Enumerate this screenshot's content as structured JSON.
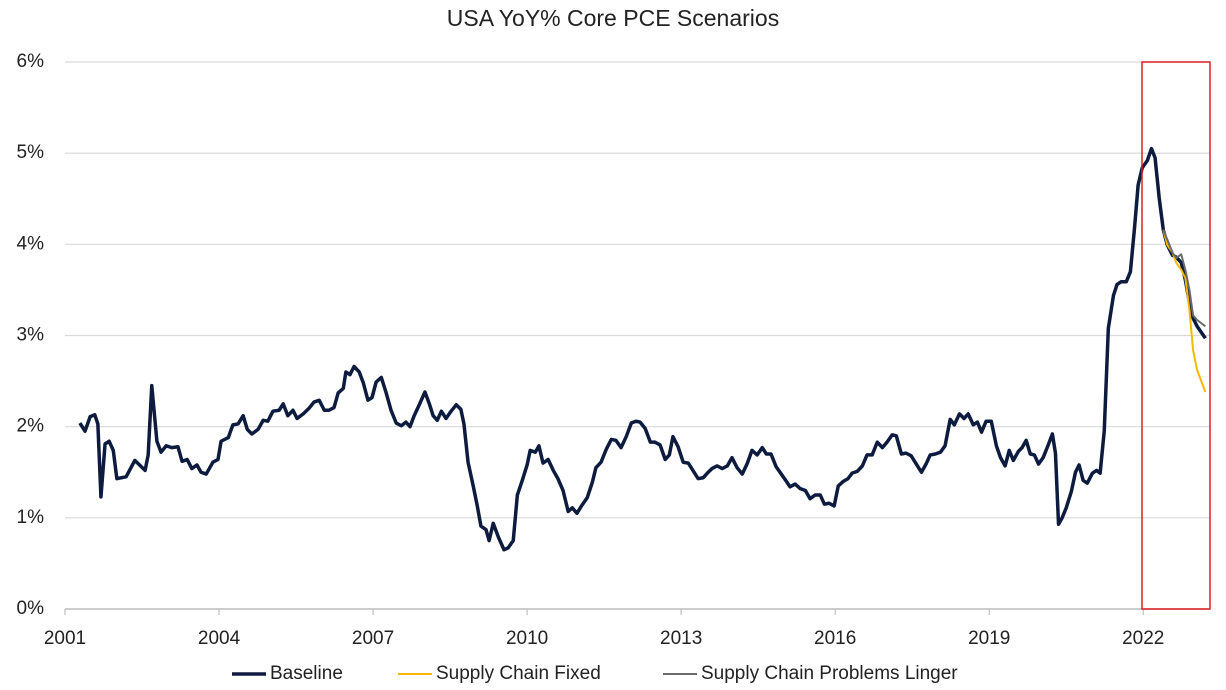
{
  "chart_data": {
    "type": "line",
    "title": "USA YoY% Core PCE Scenarios",
    "xlim": [
      2001,
      2023.3
    ],
    "xticks": [
      2001,
      2004,
      2007,
      2010,
      2013,
      2016,
      2019,
      2022
    ],
    "ylim": [
      0,
      6
    ],
    "yticks": [
      {
        "value": 0,
        "label": "0%"
      },
      {
        "value": 1,
        "label": "1%"
      },
      {
        "value": 2,
        "label": "2%"
      },
      {
        "value": 3,
        "label": "3%"
      },
      {
        "value": 4,
        "label": "4%"
      },
      {
        "value": 5,
        "label": "5%"
      },
      {
        "value": 6,
        "label": "6%"
      }
    ],
    "grid": true,
    "legend": "bottom",
    "series": [
      {
        "name": "Baseline",
        "color": "#0d1b3e",
        "width": 3.5,
        "x": [
          2001.29,
          2001.39,
          2001.49,
          2001.58,
          2001.64,
          2001.7,
          2001.78,
          2001.86,
          2001.94,
          2002.01,
          2002.19,
          2002.36,
          2002.56,
          2002.62,
          2002.69,
          2002.79,
          2002.87,
          2002.97,
          2003.08,
          2003.2,
          2003.28,
          2003.38,
          2003.47,
          2003.57,
          2003.65,
          2003.75,
          2003.88,
          2003.98,
          2004.04,
          2004.18,
          2004.27,
          2004.37,
          2004.47,
          2004.55,
          2004.64,
          2004.76,
          2004.86,
          2004.95,
          2005.05,
          2005.17,
          2005.25,
          2005.34,
          2005.44,
          2005.52,
          2005.64,
          2005.75,
          2005.85,
          2005.95,
          2006.05,
          2006.14,
          2006.24,
          2006.32,
          2006.42,
          2006.47,
          2006.55,
          2006.63,
          2006.73,
          2006.81,
          2006.9,
          2006.98,
          2007.06,
          2007.16,
          2007.25,
          2007.35,
          2007.45,
          2007.55,
          2007.64,
          2007.72,
          2007.8,
          2007.9,
          2008.01,
          2008.09,
          2008.17,
          2008.25,
          2008.33,
          2008.42,
          2008.52,
          2008.62,
          2008.71,
          2008.77,
          2008.85,
          2008.95,
          2009.03,
          2009.1,
          2009.2,
          2009.26,
          2009.34,
          2009.44,
          2009.55,
          2009.63,
          2009.73,
          2009.81,
          2009.9,
          2010,
          2010.06,
          2010.16,
          2010.23,
          2010.31,
          2010.41,
          2010.51,
          2010.6,
          2010.7,
          2010.8,
          2010.88,
          2010.97,
          2011.07,
          2011.17,
          2011.27,
          2011.34,
          2011.44,
          2011.54,
          2011.64,
          2011.73,
          2011.83,
          2011.93,
          2012.03,
          2012.12,
          2012.2,
          2012.3,
          2012.4,
          2012.49,
          2012.59,
          2012.69,
          2012.77,
          2012.84,
          2012.94,
          2013.04,
          2013.14,
          2013.23,
          2013.33,
          2013.43,
          2013.51,
          2013.6,
          2013.7,
          2013.8,
          2013.9,
          2013.99,
          2014.09,
          2014.19,
          2014.29,
          2014.38,
          2014.48,
          2014.58,
          2014.66,
          2014.75,
          2014.85,
          2014.95,
          2015.05,
          2015.12,
          2015.22,
          2015.32,
          2015.42,
          2015.51,
          2015.61,
          2015.71,
          2015.79,
          2015.88,
          2015.98,
          2016.06,
          2016.16,
          2016.25,
          2016.33,
          2016.43,
          2016.53,
          2016.62,
          2016.72,
          2016.82,
          2016.92,
          2017.01,
          2017.11,
          2017.19,
          2017.29,
          2017.38,
          2017.48,
          2017.58,
          2017.68,
          2017.77,
          2017.85,
          2017.95,
          2018.05,
          2018.14,
          2018.24,
          2018.32,
          2018.42,
          2018.51,
          2018.59,
          2018.69,
          2018.77,
          2018.85,
          2018.94,
          2019.04,
          2019.14,
          2019.22,
          2019.31,
          2019.39,
          2019.47,
          2019.57,
          2019.64,
          2019.72,
          2019.8,
          2019.88,
          2019.96,
          2020.05,
          2020.15,
          2020.23,
          2020.29,
          2020.35,
          2020.42,
          2020.5,
          2020.6,
          2020.68,
          2020.75,
          2020.83,
          2020.91,
          2021.01,
          2021.09,
          2021.16,
          2021.24,
          2021.32,
          2021.42,
          2021.49,
          2021.57,
          2021.67,
          2021.75,
          2021.83,
          2021.9,
          2021.98,
          2022.08,
          2022.16,
          2022.23,
          2022.31,
          2022.39,
          2022.47,
          2022.57,
          2022.64,
          2022.74,
          2022.82,
          2022.9,
          2022.97,
          2023.05,
          2023.21
        ],
        "values": [
          2.04,
          1.95,
          2.11,
          2.13,
          2.03,
          1.23,
          1.81,
          1.84,
          1.74,
          1.43,
          1.45,
          1.63,
          1.52,
          1.69,
          2.45,
          1.84,
          1.72,
          1.79,
          1.77,
          1.78,
          1.62,
          1.64,
          1.54,
          1.58,
          1.5,
          1.48,
          1.61,
          1.64,
          1.84,
          1.88,
          2.02,
          2.03,
          2.12,
          1.97,
          1.92,
          1.97,
          2.07,
          2.06,
          2.17,
          2.18,
          2.25,
          2.12,
          2.18,
          2.09,
          2.14,
          2.2,
          2.27,
          2.29,
          2.18,
          2.18,
          2.21,
          2.37,
          2.42,
          2.6,
          2.57,
          2.66,
          2.6,
          2.48,
          2.29,
          2.32,
          2.49,
          2.54,
          2.38,
          2.18,
          2.04,
          2.01,
          2.05,
          2,
          2.12,
          2.24,
          2.38,
          2.26,
          2.12,
          2.07,
          2.17,
          2.09,
          2.17,
          2.24,
          2.19,
          2.03,
          1.61,
          1.35,
          1.13,
          0.91,
          0.87,
          0.75,
          0.94,
          0.79,
          0.65,
          0.67,
          0.75,
          1.25,
          1.4,
          1.58,
          1.74,
          1.72,
          1.79,
          1.6,
          1.64,
          1.52,
          1.43,
          1.3,
          1.07,
          1.11,
          1.05,
          1.14,
          1.22,
          1.39,
          1.55,
          1.61,
          1.75,
          1.86,
          1.85,
          1.77,
          1.89,
          2.04,
          2.06,
          2.05,
          1.98,
          1.83,
          1.83,
          1.8,
          1.64,
          1.69,
          1.89,
          1.78,
          1.61,
          1.6,
          1.52,
          1.43,
          1.44,
          1.49,
          1.54,
          1.57,
          1.54,
          1.57,
          1.66,
          1.55,
          1.48,
          1.6,
          1.74,
          1.69,
          1.77,
          1.7,
          1.7,
          1.56,
          1.48,
          1.4,
          1.34,
          1.37,
          1.32,
          1.3,
          1.21,
          1.25,
          1.25,
          1.15,
          1.16,
          1.13,
          1.35,
          1.4,
          1.43,
          1.49,
          1.51,
          1.57,
          1.69,
          1.69,
          1.83,
          1.77,
          1.83,
          1.91,
          1.9,
          1.7,
          1.71,
          1.68,
          1.59,
          1.5,
          1.59,
          1.69,
          1.7,
          1.72,
          1.79,
          2.08,
          2.02,
          2.14,
          2.09,
          2.14,
          2.02,
          2.05,
          1.94,
          2.06,
          2.06,
          1.79,
          1.66,
          1.57,
          1.74,
          1.63,
          1.73,
          1.77,
          1.85,
          1.7,
          1.69,
          1.59,
          1.66,
          1.8,
          1.92,
          1.71,
          0.93,
          1,
          1.11,
          1.29,
          1.5,
          1.58,
          1.41,
          1.38,
          1.49,
          1.52,
          1.49,
          1.95,
          3.08,
          3.44,
          3.56,
          3.59,
          3.59,
          3.7,
          4.18,
          4.65,
          4.84,
          4.92,
          5.05,
          4.95,
          4.51,
          4.16,
          3.99,
          3.88,
          3.86,
          3.8,
          3.61,
          3.36,
          3.19,
          3.1,
          2.97
        ]
      },
      {
        "name": "Supply Chain Fixed",
        "color": "#f5b800",
        "width": 2,
        "x": [
          2022.39,
          2022.47,
          2022.57,
          2022.64,
          2022.74,
          2022.82,
          2022.9,
          2022.97,
          2023.05,
          2023.21
        ],
        "values": [
          4.16,
          3.99,
          3.91,
          3.8,
          3.72,
          3.63,
          3.28,
          2.84,
          2.62,
          2.38
        ]
      },
      {
        "name": "Supply Chain Problems Linger",
        "color": "#6b6b6b",
        "width": 2,
        "x": [
          2022.39,
          2022.47,
          2022.57,
          2022.64,
          2022.74,
          2022.82,
          2022.9,
          2022.97,
          2023.05,
          2023.21
        ],
        "values": [
          4.16,
          4.05,
          3.91,
          3.85,
          3.89,
          3.72,
          3.5,
          3.22,
          3.17,
          3.1
        ]
      }
    ]
  }
}
